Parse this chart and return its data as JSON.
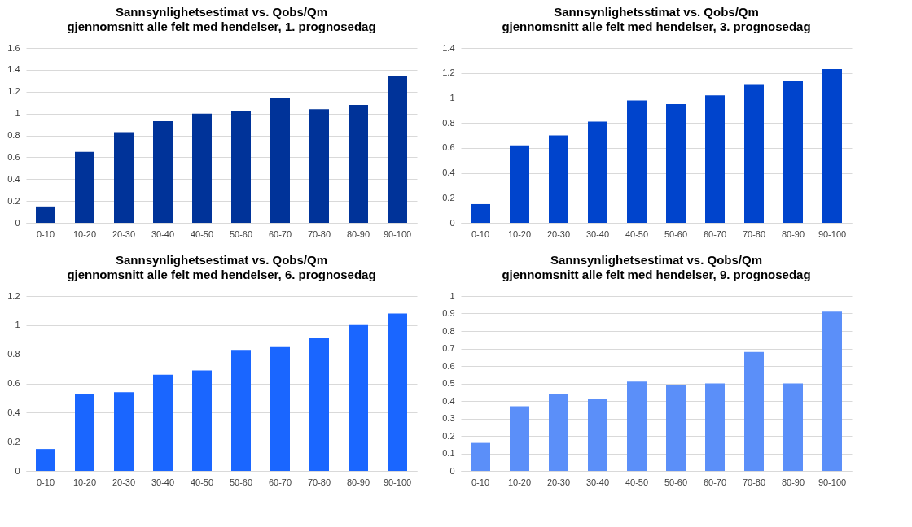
{
  "chart_data": [
    {
      "type": "bar",
      "title": "Sannsynlighetsestimat vs. Qobs/Qm",
      "subtitle": "gjennomsnitt alle felt med hendelser, 1. prognosedag",
      "categories": [
        "0-10",
        "10-20",
        "20-30",
        "30-40",
        "40-50",
        "50-60",
        "60-70",
        "70-80",
        "80-90",
        "90-100"
      ],
      "values": [
        0.15,
        0.65,
        0.83,
        0.93,
        1.0,
        1.02,
        1.14,
        1.04,
        1.08,
        1.34
      ],
      "color": "#003399",
      "ylim": [
        0,
        1.6
      ],
      "yticks": [
        0,
        0.2,
        0.4,
        0.6,
        0.8,
        1,
        1.2,
        1.4,
        1.6
      ],
      "grid": "y"
    },
    {
      "type": "bar",
      "title": "Sannsynlighetsstimat vs. Qobs/Qm",
      "subtitle": "gjennomsnitt alle felt med hendelser, 3. prognosedag",
      "categories": [
        "0-10",
        "10-20",
        "20-30",
        "30-40",
        "40-50",
        "50-60",
        "60-70",
        "70-80",
        "80-90",
        "90-100"
      ],
      "values": [
        0.15,
        0.62,
        0.7,
        0.81,
        0.98,
        0.95,
        1.02,
        1.11,
        1.14,
        1.23
      ],
      "color": "#0044cc",
      "ylim": [
        0,
        1.4
      ],
      "yticks": [
        0,
        0.2,
        0.4,
        0.6,
        0.8,
        1,
        1.2,
        1.4
      ],
      "grid": "y"
    },
    {
      "type": "bar",
      "title": "Sannsynlighetsestimat vs. Qobs/Qm",
      "subtitle": "gjennomsnitt alle felt med hendelser, 6. prognosedag",
      "categories": [
        "0-10",
        "10-20",
        "20-30",
        "30-40",
        "40-50",
        "50-60",
        "60-70",
        "70-80",
        "80-90",
        "90-100"
      ],
      "values": [
        0.15,
        0.53,
        0.54,
        0.66,
        0.69,
        0.83,
        0.85,
        0.91,
        1.0,
        1.08
      ],
      "color": "#1a66ff",
      "ylim": [
        0,
        1.2
      ],
      "yticks": [
        0,
        0.2,
        0.4,
        0.6,
        0.8,
        1,
        1.2
      ],
      "grid": "y"
    },
    {
      "type": "bar",
      "title": "Sannsynlighetsestimat vs. Qobs/Qm",
      "subtitle": "gjennomsnitt alle felt med hendelser, 9. prognosedag",
      "categories": [
        "0-10",
        "10-20",
        "20-30",
        "30-40",
        "40-50",
        "50-60",
        "60-70",
        "70-80",
        "80-90",
        "90-100"
      ],
      "values": [
        0.16,
        0.37,
        0.44,
        0.41,
        0.51,
        0.49,
        0.5,
        0.68,
        0.5,
        0.91
      ],
      "color": "#5b8ff9",
      "ylim": [
        0,
        1
      ],
      "yticks": [
        0,
        0.1,
        0.2,
        0.3,
        0.4,
        0.5,
        0.6,
        0.7,
        0.8,
        0.9,
        1
      ],
      "grid": "y"
    }
  ]
}
